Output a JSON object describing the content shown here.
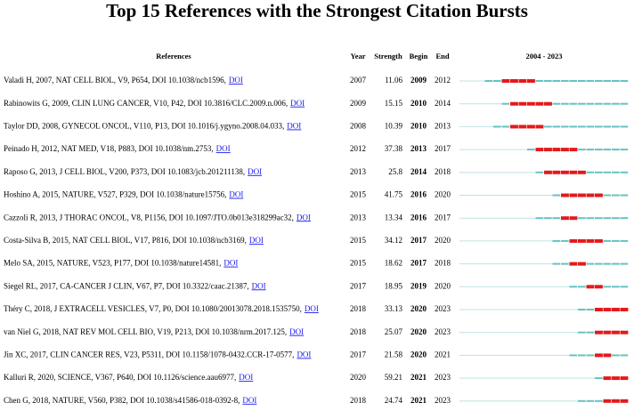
{
  "title": "Top 15 References with the Strongest Citation Bursts",
  "header": {
    "reference": "References",
    "year": "Year",
    "strength": "Strength",
    "begin": "Begin",
    "end": "End"
  },
  "timeline": {
    "label": "2004 - 2023",
    "range": [
      2004,
      2023
    ]
  },
  "rows": [
    {
      "reference": "Valadi H, 2007, NAT CELL BIOL, V9, P654, DOI 10.1038/ncb1596,",
      "doi": "DOI",
      "year": 2007,
      "strength": 11.06,
      "begin": 2009,
      "end": 2012
    },
    {
      "reference": "Rabinowits G, 2009, CLIN LUNG CANCER, V10, P42, DOI 10.3816/CLC.2009.n.006,",
      "doi": "DOI",
      "year": 2009,
      "strength": 15.15,
      "begin": 2010,
      "end": 2014
    },
    {
      "reference": "Taylor DD, 2008, GYNECOL ONCOL, V110, P13, DOI 10.1016/j.ygyno.2008.04.033,",
      "doi": "DOI",
      "year": 2008,
      "strength": 10.39,
      "begin": 2010,
      "end": 2013
    },
    {
      "reference": "Peinado H, 2012, NAT MED, V18, P883, DOI 10.1038/nm.2753,",
      "doi": "DOI",
      "year": 2012,
      "strength": 37.38,
      "begin": 2013,
      "end": 2017
    },
    {
      "reference": "Raposo G, 2013, J CELL BIOL, V200, P373, DOI 10.1083/jcb.201211138,",
      "doi": "DOI",
      "year": 2013,
      "strength": 25.8,
      "begin": 2014,
      "end": 2018
    },
    {
      "reference": "Hoshino A, 2015, NATURE, V527, P329, DOI 10.1038/nature15756,",
      "doi": "DOI",
      "year": 2015,
      "strength": 41.75,
      "begin": 2016,
      "end": 2020
    },
    {
      "reference": "Cazzoli R, 2013, J THORAC ONCOL, V8, P1156, DOI 10.1097/JTO.0b013e318299ac32,",
      "doi": "DOI",
      "year": 2013,
      "strength": 13.34,
      "begin": 2016,
      "end": 2017
    },
    {
      "reference": "Costa-Silva B, 2015, NAT CELL BIOL, V17, P816, DOI 10.1038/ncb3169,",
      "doi": "DOI",
      "year": 2015,
      "strength": 34.12,
      "begin": 2017,
      "end": 2020
    },
    {
      "reference": "Melo SA, 2015, NATURE, V523, P177, DOI 10.1038/nature14581,",
      "doi": "DOI",
      "year": 2015,
      "strength": 18.62,
      "begin": 2017,
      "end": 2018
    },
    {
      "reference": "Siegel RL, 2017, CA-CANCER J CLIN, V67, P7, DOI 10.3322/caac.21387,",
      "doi": "DOI",
      "year": 2017,
      "strength": 18.95,
      "begin": 2019,
      "end": 2020
    },
    {
      "reference": "Théry C, 2018, J EXTRACELL VESICLES, V7, P0, DOI 10.1080/20013078.2018.1535750,",
      "doi": "DOI",
      "year": 2018,
      "strength": 33.13,
      "begin": 2020,
      "end": 2023
    },
    {
      "reference": "van Niel G, 2018, NAT REV MOL CELL BIO, V19, P213, DOI 10.1038/nrm.2017.125,",
      "doi": "DOI",
      "year": 2018,
      "strength": 25.07,
      "begin": 2020,
      "end": 2023
    },
    {
      "reference": "Jin XC, 2017, CLIN CANCER RES, V23, P5311, DOI 10.1158/1078-0432.CCR-17-0577,",
      "doi": "DOI",
      "year": 2017,
      "strength": 21.58,
      "begin": 2020,
      "end": 2021
    },
    {
      "reference": "Kalluri R, 2020, SCIENCE, V367, P640, DOI 10.1126/science.aau6977,",
      "doi": "DOI",
      "year": 2020,
      "strength": 59.21,
      "begin": 2021,
      "end": 2023
    },
    {
      "reference": "Chen G, 2018, NATURE, V560, P382, DOI 10.1038/s41586-018-0392-8,",
      "doi": "DOI",
      "year": 2018,
      "strength": 24.74,
      "begin": 2021,
      "end": 2023
    }
  ]
}
